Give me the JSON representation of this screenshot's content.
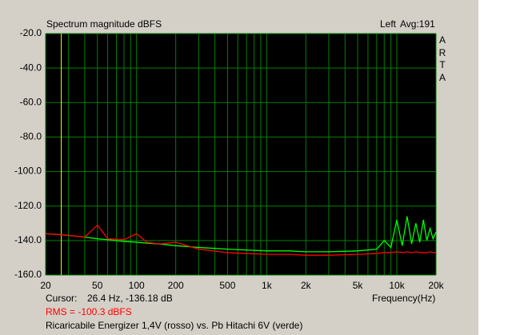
{
  "chart_data": {
    "type": "line",
    "title": "Spectrum magnitude dBFS",
    "channel": "Left",
    "averages": "Avg:191",
    "logo": "ARTA",
    "xlabel": "Frequency(Hz)",
    "xscale": "log",
    "grid": true,
    "xlim": [
      20,
      20000
    ],
    "ylim": [
      -160,
      -20
    ],
    "yticks": [
      {
        "value": -20,
        "label": "-20.0"
      },
      {
        "value": -40,
        "label": "-40.0"
      },
      {
        "value": -60,
        "label": "-60.0"
      },
      {
        "value": -80,
        "label": "-80.0"
      },
      {
        "value": -100,
        "label": "-100.0"
      },
      {
        "value": -120,
        "label": "-120.0"
      },
      {
        "value": -140,
        "label": "-140.0"
      },
      {
        "value": -160,
        "label": "-160.0"
      }
    ],
    "xticks": [
      20,
      50,
      100,
      200,
      500,
      {
        "value": 1000,
        "label": "1k"
      },
      {
        "value": 2000,
        "label": "2k"
      },
      {
        "value": 5000,
        "label": "5k"
      },
      {
        "value": 10000,
        "label": "10k"
      },
      {
        "value": 20000,
        "label": "20k"
      }
    ],
    "xgrid": [
      20,
      30,
      40,
      50,
      60,
      70,
      80,
      90,
      100,
      200,
      300,
      400,
      500,
      600,
      700,
      800,
      900,
      1000,
      2000,
      3000,
      4000,
      5000,
      6000,
      7000,
      8000,
      9000,
      10000,
      20000
    ],
    "cursor": {
      "label": "Cursor:",
      "text": "26.4 Hz, -136.18 dB",
      "x": 26.4
    },
    "rms": "RMS = -100.3 dBFS",
    "caption": "Ricaricabile Energizer 1,4V  (rosso) vs. Pb Hitachi 6V (verde)",
    "x": [
      20,
      25,
      30,
      40,
      50,
      60,
      80,
      100,
      120,
      150,
      200,
      300,
      500,
      700,
      1000,
      1500,
      2000,
      3000,
      5000,
      7000,
      8000,
      9000,
      10000,
      11000,
      12000,
      13000,
      14000,
      15000,
      16000,
      17000,
      18000,
      19000,
      20000
    ],
    "series": [
      {
        "color": "#00ff00",
        "values": [
          -136,
          -136.5,
          -137,
          -138,
          -139,
          -139.5,
          -140.5,
          -141,
          -141.5,
          -142,
          -143,
          -144,
          -145,
          -145.5,
          -146,
          -146,
          -146.5,
          -146.5,
          -146,
          -145,
          -140,
          -144,
          -128,
          -143,
          -126,
          -142,
          -130,
          -141,
          -128,
          -140,
          -133,
          -139,
          -135
        ]
      },
      {
        "color": "#ff0000",
        "values": [
          -136,
          -136.5,
          -137,
          -138,
          -131,
          -139,
          -139.5,
          -136,
          -141,
          -142,
          -141,
          -145,
          -147,
          -147.5,
          -148,
          -148,
          -148.5,
          -148.5,
          -148,
          -147.5,
          -147,
          -147,
          -146.5,
          -147,
          -146.5,
          -147,
          -146.5,
          -147,
          -147,
          -147,
          -146.5,
          -147,
          -147
        ]
      }
    ]
  }
}
